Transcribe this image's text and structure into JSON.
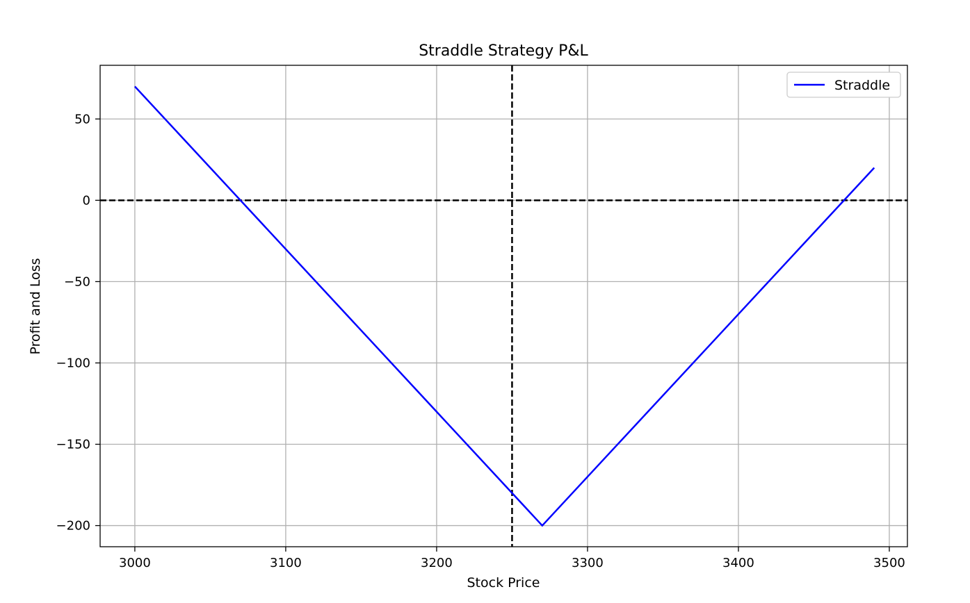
{
  "chart_data": {
    "type": "line",
    "title": "Straddle Strategy P&L",
    "xlabel": "Stock Price",
    "ylabel": "Profit and Loss",
    "xlim": [
      2977,
      3512
    ],
    "ylim": [
      -213,
      83
    ],
    "x_ticks": [
      3000,
      3100,
      3200,
      3300,
      3400,
      3500
    ],
    "y_ticks": [
      50,
      0,
      -50,
      -100,
      -150,
      -200
    ],
    "x_tick_labels": [
      "3000",
      "3100",
      "3200",
      "3300",
      "3400",
      "3500"
    ],
    "y_tick_labels": [
      "50",
      "0",
      "−50",
      "−100",
      "−150",
      "−200"
    ],
    "grid": true,
    "legend_position": "top-right",
    "series": [
      {
        "name": "Straddle",
        "color": "#0000ff",
        "x": [
          3000,
          3270,
          3490
        ],
        "y": [
          70,
          -200,
          20
        ]
      }
    ],
    "reference_lines": [
      {
        "orientation": "horizontal",
        "value": 0,
        "style": "dashed",
        "color": "#000000"
      },
      {
        "orientation": "vertical",
        "value": 3250,
        "style": "dashed",
        "color": "#000000"
      }
    ]
  }
}
